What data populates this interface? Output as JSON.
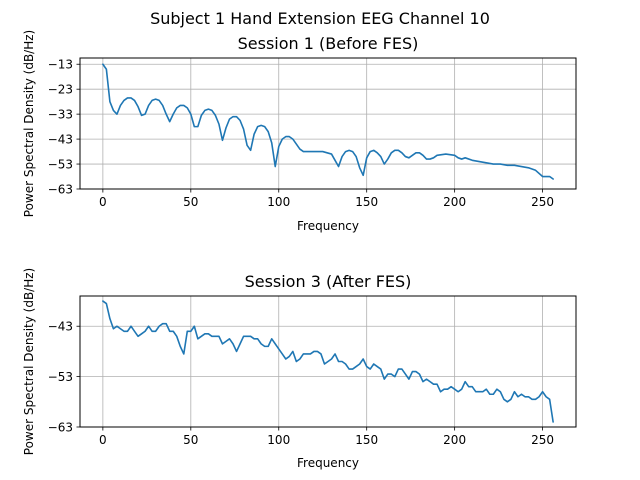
{
  "suptitle": "Subject 1 Hand Extension EEG Channel 10",
  "chart_data": [
    {
      "type": "line",
      "title": "Session 1 (Before FES)",
      "xlabel": "Frequency",
      "ylabel": "Power Spectral Density (dB/Hz)",
      "xlim": [
        -13,
        269
      ],
      "ylim": [
        -63,
        -10.5
      ],
      "xticks": [
        0,
        50,
        100,
        150,
        200,
        250
      ],
      "yticks": [
        -63,
        -53,
        -43,
        -33,
        -23,
        -13
      ],
      "grid": true,
      "series": [
        {
          "color": "#1f77b4",
          "x": [
            0,
            2,
            4,
            6,
            8,
            10,
            12,
            14,
            16,
            18,
            20,
            22,
            24,
            26,
            28,
            30,
            32,
            34,
            36,
            38,
            40,
            42,
            44,
            46,
            48,
            50,
            52,
            54,
            56,
            58,
            60,
            62,
            64,
            66,
            68,
            70,
            72,
            74,
            76,
            78,
            80,
            82,
            84,
            86,
            88,
            90,
            92,
            94,
            96,
            98,
            100,
            102,
            104,
            106,
            108,
            110,
            112,
            114,
            116,
            118,
            120,
            125,
            130,
            132,
            134,
            136,
            138,
            140,
            142,
            144,
            146,
            148,
            150,
            152,
            154,
            156,
            158,
            160,
            162,
            164,
            166,
            168,
            170,
            172,
            174,
            176,
            178,
            180,
            182,
            184,
            186,
            188,
            190,
            195,
            200,
            202,
            204,
            206,
            210,
            214,
            218,
            222,
            226,
            230,
            234,
            238,
            242,
            246,
            250,
            254,
            256
          ],
          "values": [
            -13,
            -15,
            -28,
            -31.5,
            -33,
            -29.5,
            -27.5,
            -26.5,
            -26.5,
            -27.5,
            -30,
            -33.5,
            -33,
            -29.5,
            -27.5,
            -27,
            -27.5,
            -29.5,
            -33,
            -36,
            -33,
            -30.5,
            -29.5,
            -29.5,
            -30.5,
            -33,
            -38,
            -38,
            -33.5,
            -31.5,
            -31,
            -31.5,
            -33.5,
            -37,
            -43.5,
            -38.5,
            -35,
            -34,
            -34,
            -35.5,
            -39,
            -45.5,
            -47.5,
            -41,
            -38,
            -37.5,
            -38,
            -40,
            -44.5,
            -54,
            -46,
            -43,
            -42,
            -42,
            -43,
            -45,
            -47,
            -48,
            -48,
            -48,
            -48,
            -48,
            -49,
            -51.5,
            -54,
            -50,
            -48,
            -47.5,
            -48,
            -50,
            -54.5,
            -57.5,
            -50.5,
            -48,
            -47.5,
            -48.5,
            -50,
            -53,
            -51,
            -48.5,
            -47.5,
            -47.5,
            -48.5,
            -50,
            -50.5,
            -49.5,
            -48.5,
            -48.5,
            -49.5,
            -51,
            -51,
            -50.5,
            -49.5,
            -49,
            -49.5,
            -50.5,
            -51,
            -50.5,
            -51.5,
            -52,
            -52.5,
            -53,
            -53,
            -53.5,
            -53.5,
            -54,
            -54.5,
            -55.5,
            -58,
            -58,
            -59
          ]
        }
      ]
    },
    {
      "type": "line",
      "title": "Session 3 (After FES)",
      "xlabel": "Frequency",
      "ylabel": "Power Spectral Density (dB/Hz)",
      "xlim": [
        -13,
        269
      ],
      "ylim": [
        -63,
        -37
      ],
      "xticks": [
        0,
        50,
        100,
        150,
        200,
        250
      ],
      "yticks": [
        -63,
        -53,
        -43
      ],
      "grid": true,
      "series": [
        {
          "color": "#1f77b4",
          "x": [
            0,
            2,
            4,
            6,
            8,
            10,
            12,
            14,
            16,
            18,
            20,
            22,
            24,
            26,
            28,
            30,
            32,
            34,
            36,
            38,
            40,
            42,
            44,
            46,
            48,
            50,
            52,
            54,
            56,
            58,
            60,
            62,
            64,
            66,
            68,
            70,
            72,
            74,
            76,
            78,
            80,
            82,
            84,
            86,
            88,
            90,
            92,
            94,
            96,
            98,
            100,
            102,
            104,
            106,
            108,
            110,
            112,
            114,
            116,
            118,
            120,
            122,
            124,
            126,
            128,
            130,
            132,
            134,
            136,
            138,
            140,
            142,
            144,
            146,
            148,
            150,
            152,
            154,
            156,
            158,
            160,
            162,
            164,
            166,
            168,
            170,
            172,
            174,
            176,
            178,
            180,
            182,
            184,
            186,
            188,
            190,
            192,
            194,
            196,
            198,
            200,
            202,
            204,
            206,
            208,
            210,
            212,
            214,
            216,
            218,
            220,
            222,
            224,
            226,
            228,
            230,
            232,
            234,
            236,
            238,
            240,
            242,
            244,
            246,
            248,
            250,
            252,
            254,
            256
          ],
          "values": [
            -38,
            -38.5,
            -41.5,
            -43.5,
            -43,
            -43.5,
            -44,
            -44,
            -43,
            -44,
            -45,
            -44.5,
            -44,
            -43,
            -44,
            -44,
            -43,
            -42.5,
            -42.5,
            -44,
            -44,
            -45,
            -47,
            -48.5,
            -44,
            -44,
            -43,
            -45.5,
            -45,
            -44.5,
            -44.5,
            -45,
            -45,
            -45,
            -46.5,
            -46,
            -45.5,
            -46.5,
            -48,
            -46.5,
            -45,
            -45,
            -45,
            -45.5,
            -45.5,
            -46.5,
            -47,
            -47,
            -45.5,
            -46.5,
            -47.5,
            -48.5,
            -49.5,
            -49,
            -48,
            -50,
            -49.5,
            -48.5,
            -48.5,
            -48.5,
            -48,
            -48,
            -48.5,
            -50.5,
            -50,
            -49.5,
            -48.5,
            -50,
            -50,
            -50.5,
            -51.5,
            -51.5,
            -51,
            -50.5,
            -49.5,
            -51,
            -51.5,
            -50.5,
            -51,
            -51.5,
            -53.5,
            -52.5,
            -52.5,
            -53,
            -51.5,
            -51.5,
            -52.5,
            -53.5,
            -52,
            -52,
            -52.5,
            -54,
            -53.5,
            -54,
            -54.5,
            -54.5,
            -56,
            -55.5,
            -55.5,
            -55,
            -55.5,
            -56,
            -55.5,
            -54,
            -55,
            -55,
            -56,
            -56,
            -56,
            -55.5,
            -56.5,
            -56.5,
            -55.5,
            -56,
            -57.5,
            -58,
            -57.5,
            -56,
            -57,
            -56.5,
            -57,
            -57,
            -57.5,
            -57.5,
            -57,
            -56,
            -57,
            -57.5,
            -62
          ]
        }
      ]
    }
  ]
}
